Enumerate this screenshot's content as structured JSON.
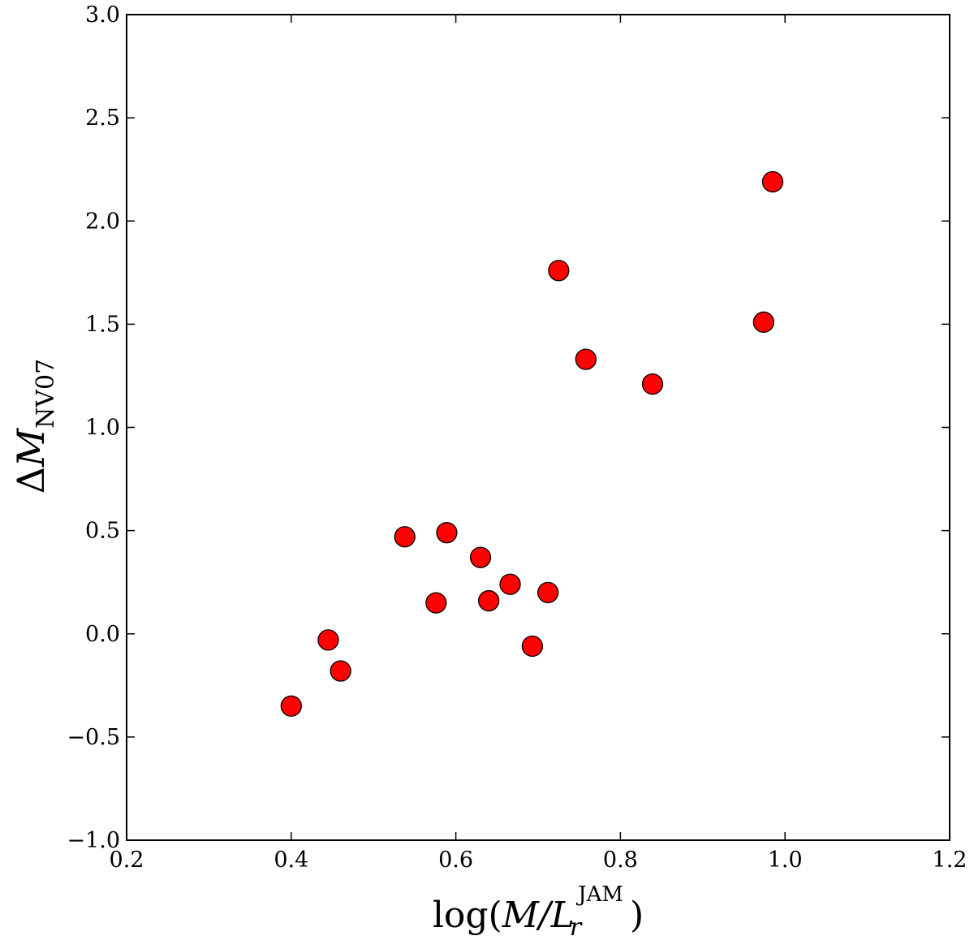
{
  "chart_data": {
    "type": "scatter",
    "title": "",
    "xlabel": {
      "main": "log(",
      "var": "M",
      "slash": "/",
      "var2": "L",
      "sub": "r",
      "sup": "JAM",
      "close": ")"
    },
    "ylabel": {
      "main": "Δ",
      "var": "M",
      "sub": "NV07"
    },
    "xlim": [
      0.2,
      1.2
    ],
    "ylim": [
      -1.0,
      3.0
    ],
    "xticks": [
      0.2,
      0.4,
      0.6,
      0.8,
      1.0,
      1.2
    ],
    "xtick_labels": [
      "0.2",
      "0.4",
      "0.6",
      "0.8",
      "1.0",
      "1.2"
    ],
    "yticks": [
      -1.0,
      -0.5,
      0.0,
      0.5,
      1.0,
      1.5,
      2.0,
      2.5,
      3.0
    ],
    "ytick_labels": [
      "−1.0",
      "−0.5",
      "0.0",
      "0.5",
      "1.0",
      "1.5",
      "2.0",
      "2.5",
      "3.0"
    ],
    "grid": false,
    "legend": "none",
    "marker_color": "#ff0000",
    "marker_edge_color": "#000000",
    "points": [
      {
        "x": 0.4,
        "y": -0.35
      },
      {
        "x": 0.445,
        "y": -0.03
      },
      {
        "x": 0.46,
        "y": -0.18
      },
      {
        "x": 0.538,
        "y": 0.47
      },
      {
        "x": 0.576,
        "y": 0.15
      },
      {
        "x": 0.589,
        "y": 0.49
      },
      {
        "x": 0.63,
        "y": 0.37
      },
      {
        "x": 0.64,
        "y": 0.16
      },
      {
        "x": 0.666,
        "y": 0.24
      },
      {
        "x": 0.693,
        "y": -0.06
      },
      {
        "x": 0.712,
        "y": 0.2
      },
      {
        "x": 0.725,
        "y": 1.76
      },
      {
        "x": 0.758,
        "y": 1.33
      },
      {
        "x": 0.839,
        "y": 1.21
      },
      {
        "x": 0.974,
        "y": 1.51
      },
      {
        "x": 0.985,
        "y": 2.19
      }
    ]
  }
}
